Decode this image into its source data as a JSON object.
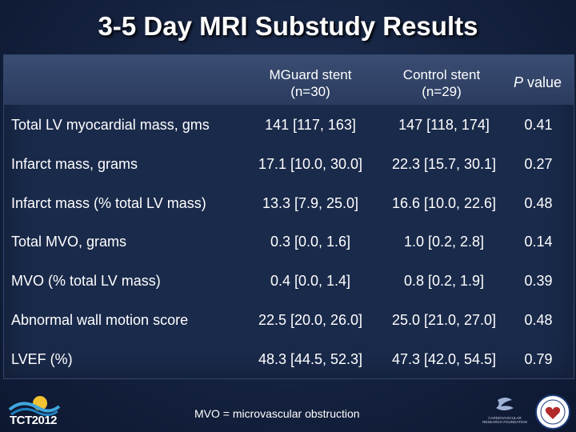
{
  "title": "3-5 Day MRI Substudy Results",
  "table": {
    "headers": {
      "mguard_line1": "MGuard stent",
      "mguard_line2": "(n=30)",
      "control_line1": "Control stent",
      "control_line2": "(n=29)",
      "p_italic": "P",
      "p_rest": " value"
    },
    "rows": [
      {
        "label": "Total LV myocardial mass, gms",
        "mguard": "141 [117, 163]",
        "control": "147 [118, 174]",
        "p": "0.41"
      },
      {
        "label": "Infarct mass, grams",
        "mguard": "17.1 [10.0, 30.0]",
        "control": "22.3 [15.7, 30.1]",
        "p": "0.27"
      },
      {
        "label": "Infarct mass (% total LV mass)",
        "mguard": "13.3 [7.9, 25.0]",
        "control": "16.6 [10.0, 22.6]",
        "p": "0.48"
      },
      {
        "label": "Total MVO, grams",
        "mguard": "0.3 [0.0, 1.6]",
        "control": "1.0 [0.2, 2.8]",
        "p": "0.14"
      },
      {
        "label": "MVO (% total LV mass)",
        "mguard": "0.4 [0.0, 1.4]",
        "control": "0.8 [0.2, 1.9]",
        "p": "0.39"
      },
      {
        "label": "Abnormal wall motion score",
        "mguard": "22.5 [20.0, 26.0]",
        "control": "25.0 [21.0, 27.0]",
        "p": "0.48"
      },
      {
        "label": "LVEF (%)",
        "mguard": "48.3 [44.5, 52.3]",
        "control": "47.3 [42.0, 54.5]",
        "p": "0.79"
      }
    ]
  },
  "footnote": "MVO = microvascular obstruction",
  "logos": {
    "tct_text": "TCT2012",
    "tct_icon": "tct-wave-logo-icon",
    "crf_text": "CARDIOVASCULAR RESEARCH FOUNDATION",
    "crf_icon": "crf-swoosh-logo-icon",
    "seal_icon": "heart-seal-logo-icon"
  },
  "colors": {
    "background": "#14213d",
    "panel": "#1a2a4b",
    "header_band": "#34466a",
    "text": "#ffffff"
  }
}
